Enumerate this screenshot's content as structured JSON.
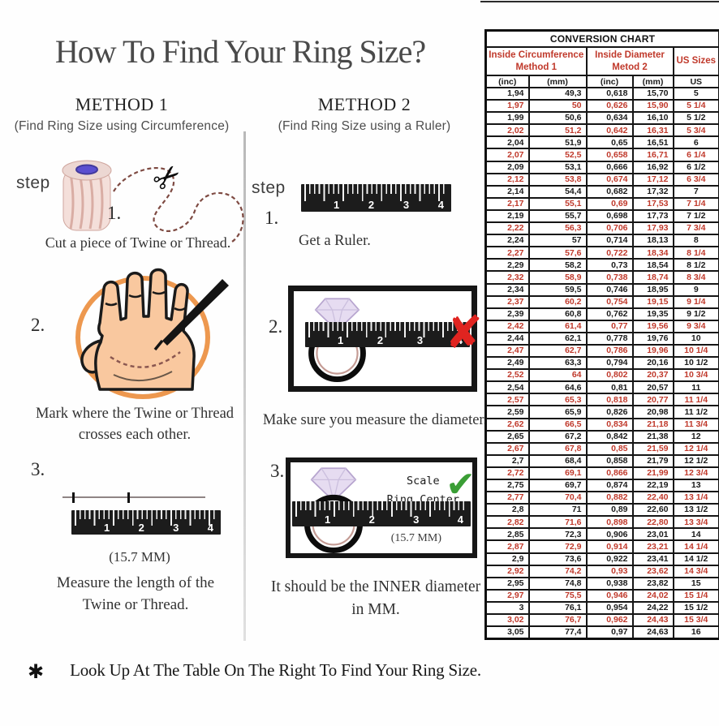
{
  "title": "How To Find Your Ring Size?",
  "icons": {
    "scissors": "✂",
    "wrong": "✘",
    "correct": "✔",
    "asterisk": "✱"
  },
  "ruler_numbers": [
    "1",
    "2",
    "3",
    "4"
  ],
  "method1": {
    "heading": "METHOD 1",
    "subheading": "(Find Ring Size using Circumference)",
    "step_word": "step",
    "steps": [
      {
        "num": "1.",
        "caption": "Cut a piece of  Twine or Thread."
      },
      {
        "num": "2.",
        "caption": "Mark where the Twine or Thread\ncrosses each other."
      },
      {
        "num": "3.",
        "caption": "Measure the length of the\nTwine or Thread.",
        "measurement": "(15.7 MM)"
      }
    ]
  },
  "method2": {
    "heading": "METHOD 2",
    "subheading": "(Find Ring Size using a Ruler)",
    "step_word": "step",
    "steps": [
      {
        "num": "1.",
        "caption": "Get a Ruler."
      },
      {
        "num": "2.",
        "caption": "Make sure you measure the diameter."
      },
      {
        "num": "3.",
        "caption": "It should be the INNER diameter\nin MM.",
        "scale_label": "Scale\nRing Center",
        "measurement": "(15.7 MM)"
      }
    ]
  },
  "footnote": {
    "marker": "✱",
    "text": "Look Up At The Table On The Right To Find Your Ring Size."
  },
  "table": {
    "title": "CONVERSION CHART",
    "group_headers": [
      "Inside Circumference\nMethod 1",
      "Inside Diameter\nMetod 2",
      "US Sizes"
    ],
    "sub_headers": [
      "(inc)",
      "(mm)",
      "(inc)",
      "(mm)",
      "US"
    ],
    "rows": [
      [
        "1,94",
        "49,3",
        "0,618",
        "15,70",
        "5"
      ],
      [
        "1,97",
        "50",
        "0,626",
        "15,90",
        "5 1/4"
      ],
      [
        "1,99",
        "50,6",
        "0,634",
        "16,10",
        "5 1/2"
      ],
      [
        "2,02",
        "51,2",
        "0,642",
        "16,31",
        "5 3/4"
      ],
      [
        "2,04",
        "51,9",
        "0,65",
        "16,51",
        "6"
      ],
      [
        "2,07",
        "52,5",
        "0,658",
        "16,71",
        "6 1/4"
      ],
      [
        "2,09",
        "53,1",
        "0,666",
        "16,92",
        "6 1/2"
      ],
      [
        "2,12",
        "53,8",
        "0,674",
        "17,12",
        "6 3/4"
      ],
      [
        "2,14",
        "54,4",
        "0,682",
        "17,32",
        "7"
      ],
      [
        "2,17",
        "55,1",
        "0,69",
        "17,53",
        "7 1/4"
      ],
      [
        "2,19",
        "55,7",
        "0,698",
        "17,73",
        "7 1/2"
      ],
      [
        "2,22",
        "56,3",
        "0,706",
        "17,93",
        "7 3/4"
      ],
      [
        "2,24",
        "57",
        "0,714",
        "18,13",
        "8"
      ],
      [
        "2,27",
        "57,6",
        "0,722",
        "18,34",
        "8 1/4"
      ],
      [
        "2,29",
        "58,2",
        "0,73",
        "18,54",
        "8 1/2"
      ],
      [
        "2,32",
        "58,9",
        "0,738",
        "18,74",
        "8 3/4"
      ],
      [
        "2,34",
        "59,5",
        "0,746",
        "18,95",
        "9"
      ],
      [
        "2,37",
        "60,2",
        "0,754",
        "19,15",
        "9 1/4"
      ],
      [
        "2,39",
        "60,8",
        "0,762",
        "19,35",
        "9 1/2"
      ],
      [
        "2,42",
        "61,4",
        "0,77",
        "19,56",
        "9 3/4"
      ],
      [
        "2,44",
        "62,1",
        "0,778",
        "19,76",
        "10"
      ],
      [
        "2,47",
        "62,7",
        "0,786",
        "19,96",
        "10 1/4"
      ],
      [
        "2,49",
        "63,3",
        "0,794",
        "20,16",
        "10 1/2"
      ],
      [
        "2,52",
        "64",
        "0,802",
        "20,37",
        "10 3/4"
      ],
      [
        "2,54",
        "64,6",
        "0,81",
        "20,57",
        "11"
      ],
      [
        "2,57",
        "65,3",
        "0,818",
        "20,77",
        "11 1/4"
      ],
      [
        "2,59",
        "65,9",
        "0,826",
        "20,98",
        "11 1/2"
      ],
      [
        "2,62",
        "66,5",
        "0,834",
        "21,18",
        "11 3/4"
      ],
      [
        "2,65",
        "67,2",
        "0,842",
        "21,38",
        "12"
      ],
      [
        "2,67",
        "67,8",
        "0,85",
        "21,59",
        "12 1/4"
      ],
      [
        "2,7",
        "68,4",
        "0,858",
        "21,79",
        "12 1/2"
      ],
      [
        "2,72",
        "69,1",
        "0,866",
        "21,99",
        "12 3/4"
      ],
      [
        "2,75",
        "69,7",
        "0,874",
        "22,19",
        "13"
      ],
      [
        "2,77",
        "70,4",
        "0,882",
        "22,40",
        "13 1/4"
      ],
      [
        "2,8",
        "71",
        "0,89",
        "22,60",
        "13 1/2"
      ],
      [
        "2,82",
        "71,6",
        "0,898",
        "22,80",
        "13 3/4"
      ],
      [
        "2,85",
        "72,3",
        "0,906",
        "23,01",
        "14"
      ],
      [
        "2,87",
        "72,9",
        "0,914",
        "23,21",
        "14 1/4"
      ],
      [
        "2,9",
        "73,6",
        "0,922",
        "23,41",
        "14 1/2"
      ],
      [
        "2,92",
        "74,2",
        "0,93",
        "23,62",
        "14 3/4"
      ],
      [
        "2,95",
        "74,8",
        "0,938",
        "23,82",
        "15"
      ],
      [
        "2,97",
        "75,5",
        "0,946",
        "24,02",
        "15 1/4"
      ],
      [
        "3",
        "76,1",
        "0,954",
        "24,22",
        "15 1/2"
      ],
      [
        "3,02",
        "76,7",
        "0,962",
        "24,43",
        "15 3/4"
      ],
      [
        "3,05",
        "77,4",
        "0,97",
        "24,63",
        "16"
      ]
    ],
    "colors": {
      "accent_red": "#c0392b",
      "border": "#151515"
    }
  }
}
